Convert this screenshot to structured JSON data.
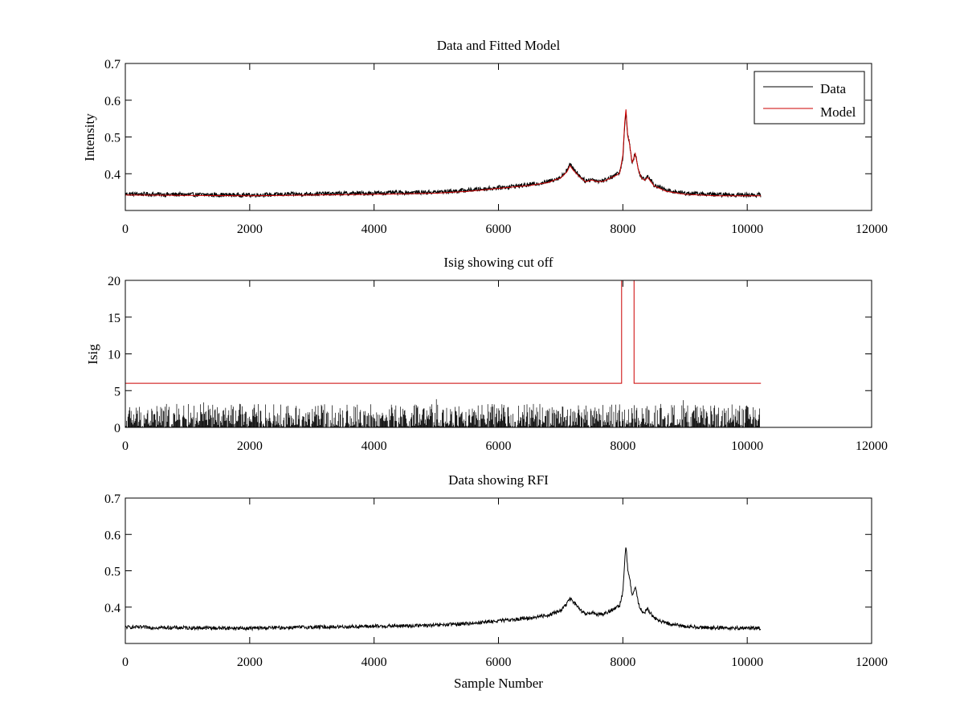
{
  "chart_data": [
    {
      "type": "line",
      "title": "Data and Fitted Model",
      "xlabel": "",
      "ylabel": "Intensity",
      "xlim": [
        0,
        12000
      ],
      "ylim": [
        0.3,
        0.7
      ],
      "xticks": [
        0,
        2000,
        4000,
        6000,
        8000,
        10000,
        12000
      ],
      "yticks": [
        0.4,
        0.5,
        0.6,
        0.7
      ],
      "grid": false,
      "legend": "top-right",
      "colors": {
        "data": "#000000",
        "model": "#cc0000"
      },
      "series": [
        {
          "name": "Data",
          "style": "noisy",
          "noise": 0.006,
          "x": [
            0,
            1000,
            2000,
            3000,
            4000,
            5000,
            5500,
            6000,
            6500,
            6800,
            6900,
            7000,
            7100,
            7150,
            7200,
            7300,
            7400,
            7500,
            7600,
            7700,
            7800,
            7900,
            7950,
            8000,
            8030,
            8050,
            8080,
            8100,
            8150,
            8200,
            8250,
            8300,
            8350,
            8400,
            8500,
            8700,
            9000,
            9500,
            10220
          ],
          "y": [
            0.345,
            0.343,
            0.342,
            0.345,
            0.347,
            0.35,
            0.355,
            0.362,
            0.37,
            0.378,
            0.385,
            0.39,
            0.41,
            0.425,
            0.415,
            0.395,
            0.38,
            0.385,
            0.38,
            0.382,
            0.39,
            0.398,
            0.405,
            0.44,
            0.53,
            0.57,
            0.5,
            0.49,
            0.43,
            0.455,
            0.41,
            0.39,
            0.385,
            0.395,
            0.37,
            0.355,
            0.347,
            0.343,
            0.342
          ]
        },
        {
          "name": "Model",
          "style": "smooth",
          "noise": 0,
          "x": [
            0,
            1000,
            2000,
            3000,
            4000,
            5000,
            5500,
            6000,
            6500,
            6800,
            6900,
            7000,
            7100,
            7150,
            7200,
            7300,
            7400,
            7500,
            7600,
            7700,
            7800,
            7900,
            7950,
            8000,
            8030,
            8050,
            8080,
            8100,
            8150,
            8200,
            8250,
            8300,
            8350,
            8400,
            8500,
            8700,
            9000,
            9500,
            10220
          ],
          "y": [
            0.342,
            0.341,
            0.34,
            0.342,
            0.344,
            0.347,
            0.352,
            0.36,
            0.368,
            0.376,
            0.383,
            0.388,
            0.405,
            0.422,
            0.41,
            0.392,
            0.378,
            0.383,
            0.378,
            0.38,
            0.388,
            0.396,
            0.402,
            0.45,
            0.54,
            0.575,
            0.5,
            0.49,
            0.43,
            0.455,
            0.41,
            0.388,
            0.382,
            0.39,
            0.367,
            0.352,
            0.344,
            0.34,
            0.34
          ]
        }
      ]
    },
    {
      "type": "line",
      "title": "Isig showing cut off",
      "xlabel": "",
      "ylabel": "Isig",
      "xlim": [
        0,
        12000
      ],
      "ylim": [
        0,
        20
      ],
      "xticks": [
        0,
        2000,
        4000,
        6000,
        8000,
        10000,
        12000
      ],
      "yticks": [
        0,
        5,
        10,
        15,
        20
      ],
      "grid": false,
      "legend": "none",
      "series": [
        {
          "name": "",
          "style": "spikes",
          "color": "#000000",
          "xmax": 10220,
          "max_level": 3.2
        },
        {
          "name": "",
          "style": "step",
          "color": "#cc0000",
          "x": [
            0,
            7980,
            7980,
            8180,
            8180,
            10220
          ],
          "y": [
            6,
            6,
            20,
            20,
            6,
            6
          ]
        }
      ]
    },
    {
      "type": "line",
      "title": "Data showing RFI",
      "xlabel": "Sample Number",
      "ylabel": "",
      "xlim": [
        0,
        12000
      ],
      "ylim": [
        0.3,
        0.7
      ],
      "xticks": [
        0,
        2000,
        4000,
        6000,
        8000,
        10000,
        12000
      ],
      "yticks": [
        0.4,
        0.5,
        0.6,
        0.7
      ],
      "grid": false,
      "legend": "none",
      "series": [
        {
          "name": "",
          "style": "noisy",
          "noise": 0.005,
          "color": "#000000",
          "x": [
            0,
            1000,
            2000,
            3000,
            4000,
            5000,
            5500,
            6000,
            6500,
            6800,
            6900,
            7000,
            7100,
            7150,
            7200,
            7300,
            7400,
            7500,
            7600,
            7700,
            7800,
            7900,
            7950,
            8000,
            8030,
            8050,
            8080,
            8100,
            8150,
            8200,
            8250,
            8300,
            8350,
            8400,
            8500,
            8700,
            9000,
            9500,
            10220
          ],
          "y": [
            0.345,
            0.343,
            0.342,
            0.345,
            0.347,
            0.35,
            0.355,
            0.362,
            0.37,
            0.378,
            0.385,
            0.39,
            0.41,
            0.425,
            0.415,
            0.395,
            0.38,
            0.385,
            0.38,
            0.382,
            0.39,
            0.398,
            0.405,
            0.44,
            0.53,
            0.57,
            0.5,
            0.49,
            0.43,
            0.455,
            0.41,
            0.39,
            0.385,
            0.395,
            0.37,
            0.355,
            0.347,
            0.343,
            0.342
          ]
        }
      ]
    }
  ]
}
